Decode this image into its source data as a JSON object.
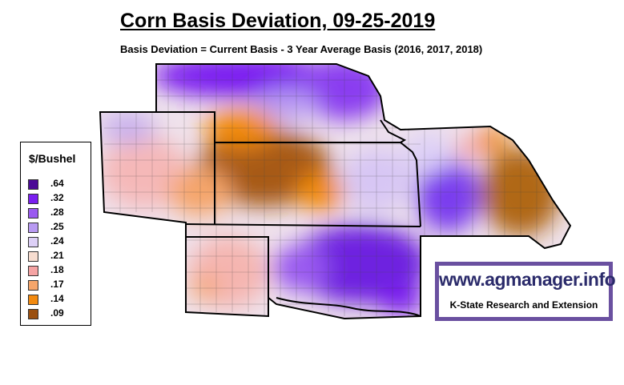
{
  "title": "Corn Basis Deviation, 09-25-2019",
  "subtitle": "Basis Deviation = Current Basis - 3 Year Average Basis (2016, 2017, 2018)",
  "legend": {
    "title": "$/Bushel",
    "items": [
      {
        "label": ".64",
        "color": "#4b0a96"
      },
      {
        "label": ".32",
        "color": "#7a1ef0"
      },
      {
        "label": ".28",
        "color": "#9a5af0"
      },
      {
        "label": ".25",
        "color": "#b89af2"
      },
      {
        "label": ".24",
        "color": "#ddd0f7"
      },
      {
        "label": ".21",
        "color": "#f7ddd0"
      },
      {
        "label": ".18",
        "color": "#f5a3a3"
      },
      {
        "label": ".17",
        "color": "#f5a56a"
      },
      {
        "label": ".14",
        "color": "#f28a10"
      },
      {
        "label": ".09",
        "color": "#9b5010"
      }
    ]
  },
  "logo": {
    "url": "www.agmanager.info",
    "org": "K-State Research and Extension",
    "frame_color": "#6a50a0"
  }
}
